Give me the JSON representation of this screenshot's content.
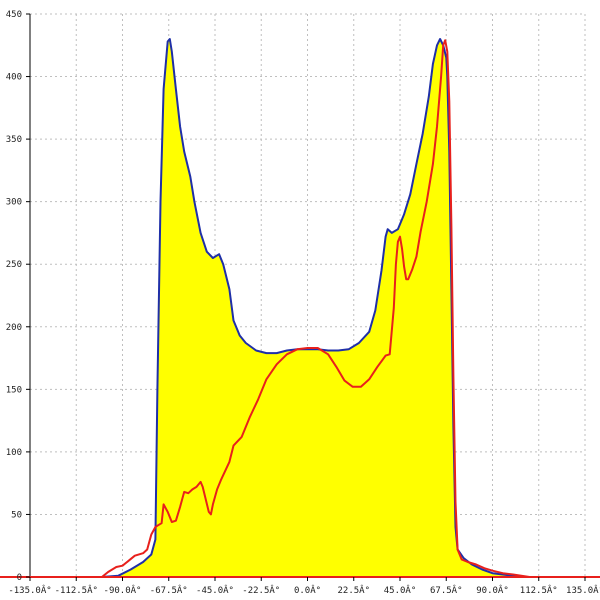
{
  "chart_data": {
    "type": "area",
    "title": "",
    "xlabel": "",
    "ylabel": "",
    "xlim": [
      -135,
      135
    ],
    "ylim": [
      0,
      450
    ],
    "grid": true,
    "x_ticks": [
      {
        "value": -135,
        "label": "-135.0Â°"
      },
      {
        "value": -112.5,
        "label": "-112.5Â°"
      },
      {
        "value": -90,
        "label": "-90.0Â°"
      },
      {
        "value": -67.5,
        "label": "-67.5Â°"
      },
      {
        "value": -45,
        "label": "-45.0Â°"
      },
      {
        "value": -22.5,
        "label": "-22.5Â°"
      },
      {
        "value": 0,
        "label": "0.0Â°"
      },
      {
        "value": 22.5,
        "label": "22.5Â°"
      },
      {
        "value": 45,
        "label": "45.0Â°"
      },
      {
        "value": 67.5,
        "label": "67.5Â°"
      },
      {
        "value": 90,
        "label": "90.0Â°"
      },
      {
        "value": 112.5,
        "label": "112.5Â°"
      },
      {
        "value": 135,
        "label": "135.0Â°"
      }
    ],
    "y_ticks": [
      {
        "value": 0,
        "label": "0"
      },
      {
        "value": 50,
        "label": "50"
      },
      {
        "value": 100,
        "label": "100"
      },
      {
        "value": 150,
        "label": "150"
      },
      {
        "value": 200,
        "label": "200"
      },
      {
        "value": 250,
        "label": "250"
      },
      {
        "value": 300,
        "label": "300"
      },
      {
        "value": 350,
        "label": "350"
      },
      {
        "value": 400,
        "label": "400"
      },
      {
        "value": 450,
        "label": "450"
      }
    ],
    "series": [
      {
        "color": "#1f2fa8",
        "fill": "#ffff00",
        "points": [
          [
            -100,
            0
          ],
          [
            -92,
            1
          ],
          [
            -86,
            6
          ],
          [
            -80,
            12
          ],
          [
            -76,
            18
          ],
          [
            -74,
            30
          ],
          [
            -73,
            150
          ],
          [
            -71.5,
            300
          ],
          [
            -70,
            390
          ],
          [
            -68,
            428
          ],
          [
            -67,
            430
          ],
          [
            -66,
            420
          ],
          [
            -64,
            390
          ],
          [
            -62,
            360
          ],
          [
            -60,
            340
          ],
          [
            -57,
            320
          ],
          [
            -55,
            300
          ],
          [
            -52,
            275
          ],
          [
            -49,
            260
          ],
          [
            -46,
            255
          ],
          [
            -43,
            258
          ],
          [
            -41,
            250
          ],
          [
            -38,
            230
          ],
          [
            -36,
            205
          ],
          [
            -33,
            193
          ],
          [
            -30,
            187
          ],
          [
            -25,
            181
          ],
          [
            -20,
            179
          ],
          [
            -15,
            179
          ],
          [
            -10,
            181
          ],
          [
            -5,
            182
          ],
          [
            0,
            182
          ],
          [
            5,
            182
          ],
          [
            10,
            181
          ],
          [
            15,
            181
          ],
          [
            20,
            182
          ],
          [
            25,
            187
          ],
          [
            30,
            196
          ],
          [
            33,
            213
          ],
          [
            36,
            245
          ],
          [
            38,
            272
          ],
          [
            39,
            278
          ],
          [
            41,
            275
          ],
          [
            44,
            278
          ],
          [
            47,
            290
          ],
          [
            50,
            306
          ],
          [
            53,
            330
          ],
          [
            56,
            354
          ],
          [
            59,
            384
          ],
          [
            61,
            410
          ],
          [
            63,
            425
          ],
          [
            64.5,
            430
          ],
          [
            66,
            425
          ],
          [
            67.5,
            415
          ],
          [
            68,
            400
          ],
          [
            69,
            340
          ],
          [
            70,
            230
          ],
          [
            71,
            120
          ],
          [
            72,
            40
          ],
          [
            73,
            22
          ],
          [
            76,
            15
          ],
          [
            80,
            10
          ],
          [
            85,
            6
          ],
          [
            90,
            3
          ],
          [
            95,
            2
          ],
          [
            100,
            1
          ],
          [
            104,
            0
          ]
        ]
      },
      {
        "color": "#e8201c",
        "points": [
          [
            -100,
            0
          ],
          [
            -97,
            4
          ],
          [
            -93,
            8
          ],
          [
            -90,
            9
          ],
          [
            -87,
            13
          ],
          [
            -84,
            17
          ],
          [
            -80,
            19
          ],
          [
            -78,
            22
          ],
          [
            -76,
            34
          ],
          [
            -74,
            40
          ],
          [
            -73,
            41
          ],
          [
            -71,
            43
          ],
          [
            -70,
            58
          ],
          [
            -68,
            52
          ],
          [
            -66,
            44
          ],
          [
            -64,
            45
          ],
          [
            -62,
            56
          ],
          [
            -60,
            68
          ],
          [
            -58,
            67
          ],
          [
            -56,
            70
          ],
          [
            -54,
            72
          ],
          [
            -52,
            76
          ],
          [
            -51,
            72
          ],
          [
            -48,
            52
          ],
          [
            -47,
            50
          ],
          [
            -46,
            58
          ],
          [
            -44,
            70
          ],
          [
            -42,
            78
          ],
          [
            -40,
            85
          ],
          [
            -38,
            92
          ],
          [
            -36,
            105
          ],
          [
            -32,
            112
          ],
          [
            -28,
            128
          ],
          [
            -24,
            142
          ],
          [
            -20,
            158
          ],
          [
            -15,
            170
          ],
          [
            -10,
            178
          ],
          [
            -5,
            182
          ],
          [
            0,
            183
          ],
          [
            5,
            183
          ],
          [
            10,
            178
          ],
          [
            14,
            168
          ],
          [
            18,
            157
          ],
          [
            22,
            152
          ],
          [
            26,
            152
          ],
          [
            30,
            158
          ],
          [
            34,
            168
          ],
          [
            38,
            177
          ],
          [
            40,
            178
          ],
          [
            42,
            215
          ],
          [
            43,
            250
          ],
          [
            44,
            268
          ],
          [
            45,
            272
          ],
          [
            46,
            262
          ],
          [
            47,
            248
          ],
          [
            48,
            238
          ],
          [
            49,
            238
          ],
          [
            51,
            246
          ],
          [
            53,
            256
          ],
          [
            55,
            276
          ],
          [
            58,
            300
          ],
          [
            61,
            330
          ],
          [
            63,
            360
          ],
          [
            65,
            400
          ],
          [
            66,
            425
          ],
          [
            67,
            429
          ],
          [
            68,
            420
          ],
          [
            69,
            380
          ],
          [
            70,
            280
          ],
          [
            71,
            160
          ],
          [
            72,
            60
          ],
          [
            73,
            22
          ],
          [
            75,
            14
          ],
          [
            78,
            12
          ],
          [
            82,
            10
          ],
          [
            86,
            7
          ],
          [
            90,
            5
          ],
          [
            95,
            3
          ],
          [
            100,
            2
          ],
          [
            104,
            1
          ],
          [
            108,
            0
          ]
        ]
      }
    ]
  }
}
